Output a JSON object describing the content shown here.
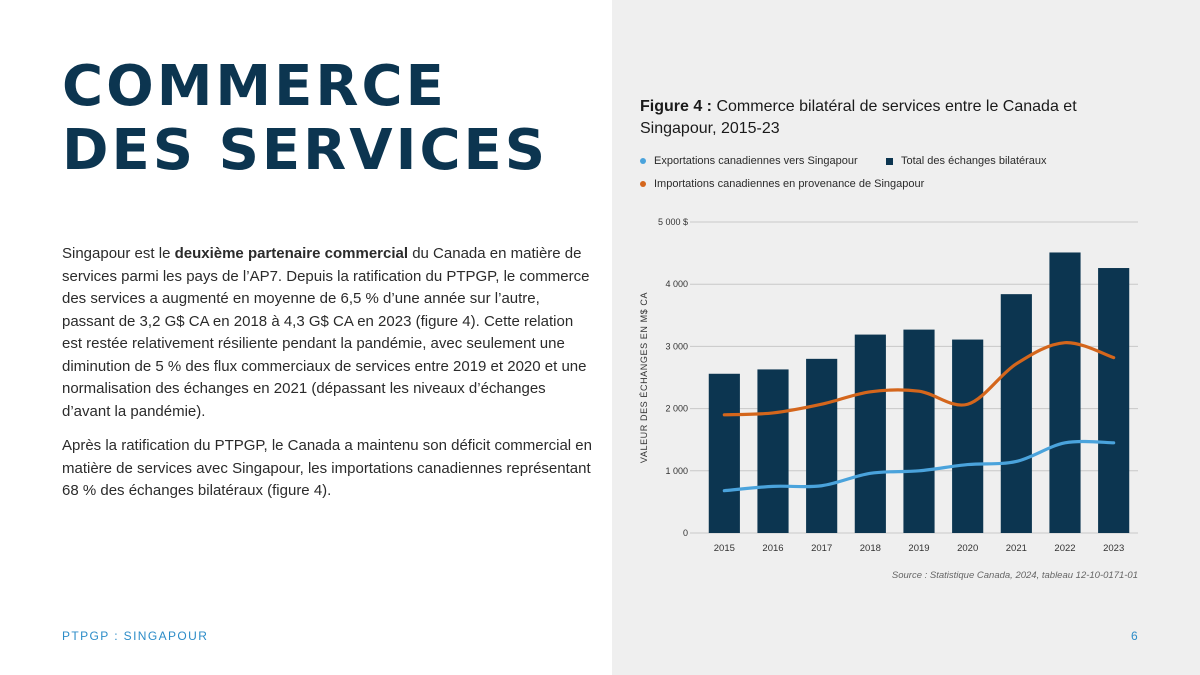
{
  "heading": {
    "line1": "COMMERCE",
    "line2": "DES SERVICES"
  },
  "body": {
    "p1_pre": "Singapour est le ",
    "p1_bold": "deuxième partenaire commercial",
    "p1_post": " du Canada en matière de services parmi les pays de l’AP7. Depuis la ratification du PTPGP, le commerce des services a augmenté en moyenne de 6,5 % d’une année sur l’autre, passant de 3,2 G$ CA en 2018 à 4,3 G$ CA en 2023 (figure 4). Cette relation est restée relativement résiliente pendant la pandémie, avec seulement une diminution de 5 % des flux commerciaux de services entre 2019 et 2020 et une normalisation des échanges en 2021 (dépassant les niveaux d’échanges d’avant la pandémie).",
    "p2": "Après la ratification du PTPGP, le Canada a maintenu son déficit commercial en matière de services avec Singapour, les importations canadiennes représentant 68 % des échanges bilatéraux (figure 4)."
  },
  "footer": {
    "label": "PTPGP : SINGAPOUR",
    "page": "6"
  },
  "figure": {
    "label": "Figure 4 :",
    "title": "Commerce bilatéral de services entre le Canada et Singapour, 2015-23",
    "source": "Source : Statistique Canada, 2024, tableau 12-10-0171-01"
  },
  "colors": {
    "bar": "#0c3550",
    "exports": "#4aa3dc",
    "imports": "#d4661c",
    "accent": "#2c8cc8",
    "grid": "#c8c8c8"
  },
  "chart_data": {
    "type": "bar",
    "categories": [
      "2015",
      "2016",
      "2017",
      "2018",
      "2019",
      "2020",
      "2021",
      "2022",
      "2023"
    ],
    "ylabel": "VALEUR DES ÉCHANGES EN M$ CA",
    "ylim": [
      0,
      5000
    ],
    "yticks": [
      0,
      1000,
      2000,
      3000,
      4000,
      5000
    ],
    "ytick_labels": [
      "0",
      "1 000",
      "2 000",
      "3 000",
      "4 000",
      "5 000 $"
    ],
    "grid": true,
    "legend_position": "top",
    "series": [
      {
        "name": "Total des échanges bilatéraux",
        "type": "bar",
        "values": [
          2560,
          2630,
          2800,
          3190,
          3270,
          3110,
          3840,
          4510,
          4260
        ]
      },
      {
        "name": "Exportations canadiennes vers Singapour",
        "type": "line",
        "values": [
          680,
          750,
          760,
          960,
          1000,
          1100,
          1150,
          1450,
          1450
        ]
      },
      {
        "name": "Importations canadiennes en provenance de Singapour",
        "type": "line",
        "values": [
          1900,
          1930,
          2070,
          2270,
          2280,
          2070,
          2720,
          3060,
          2820
        ]
      }
    ]
  }
}
